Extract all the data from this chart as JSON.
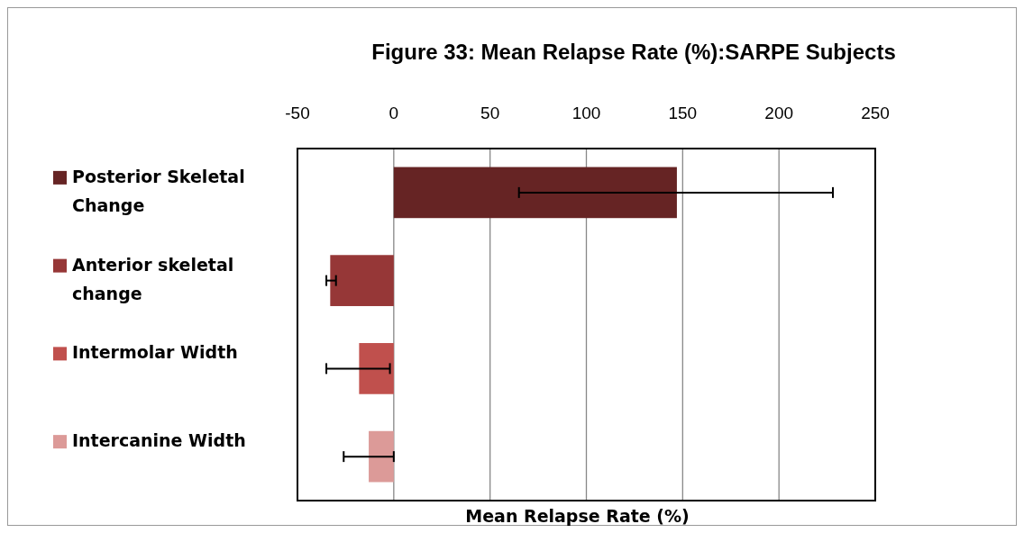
{
  "chart_data": {
    "type": "bar",
    "orientation": "horizontal",
    "title": "Figure 33: Mean Relapse Rate (%):SARPE Subjects",
    "xlabel": "Mean Relapse Rate (%)",
    "categories": [
      "Posterior Skeletal Change",
      "Anterior skeletal change",
      "Intermolar Width",
      "Intercanine Width"
    ],
    "values": [
      147,
      -33,
      -18,
      -13
    ],
    "colors": [
      "#662424",
      "#963737",
      "#c0504d",
      "#dc9a98"
    ],
    "errors": [
      [
        65,
        228
      ],
      [
        -35,
        -30
      ],
      [
        -35,
        -2
      ],
      [
        -26,
        0
      ]
    ],
    "xlim": [
      -50,
      250
    ],
    "xticks": [
      -50,
      0,
      50,
      100,
      150,
      200,
      250
    ],
    "grid": "x"
  }
}
